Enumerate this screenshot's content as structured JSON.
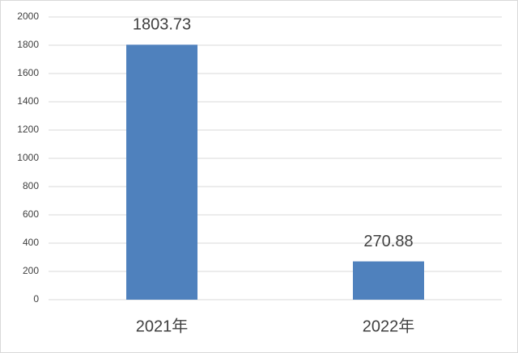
{
  "chart_data": {
    "type": "bar",
    "categories": [
      "2021年",
      "2022年"
    ],
    "values": [
      1803.73,
      270.88
    ],
    "color": "#4f81bd",
    "ylim": [
      0,
      2000
    ],
    "yticks": [
      0,
      200,
      400,
      600,
      800,
      1000,
      1200,
      1400,
      1600,
      1800,
      2000
    ],
    "grid": true
  }
}
